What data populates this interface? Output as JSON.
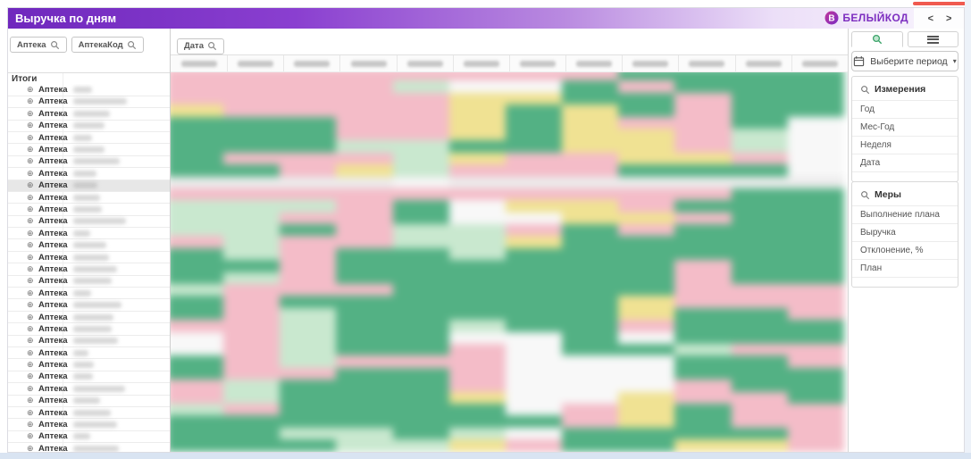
{
  "window": {
    "title": "Выручка по дням",
    "brand": "БЕЛЫЙКОД",
    "colors": {
      "header_purple": "#6f28bd",
      "brand_purple": "#7d2ec0",
      "top_red_bar": "#f05a4f"
    }
  },
  "icons": {
    "expand": "⊕",
    "caret": "▾",
    "nav_prev": "<",
    "nav_next": ">"
  },
  "left_panel": {
    "filters": [
      {
        "label": "Аптека"
      },
      {
        "label": "АптекаКод"
      }
    ],
    "totals_label": "Итоги",
    "row_label": "Аптека",
    "row_count": 31,
    "selected_row_index": 8,
    "names_blurred": true
  },
  "grid": {
    "filter_label": "Дата",
    "column_count": 12,
    "row_count": 32,
    "headers_blurred": true,
    "cells_blurred": true,
    "cell_palette": {
      "green": "#53b184",
      "light_green": "#c9e8cf",
      "pink": "#f4bcc8",
      "yellow": "#f0e293",
      "white": "#f8f8f8",
      "selected_row": "#ececec"
    }
  },
  "right_panel": {
    "tabs": [
      {
        "name": "search"
      },
      {
        "name": "menu"
      }
    ],
    "period_button": {
      "label": "Выберите период"
    },
    "dimensions": {
      "title": "Измерения",
      "items": [
        "Год",
        "Мес-Год",
        "Неделя",
        "Дата"
      ]
    },
    "measures": {
      "title": "Меры",
      "items": [
        "Выполнение плана",
        "Выручка",
        "Отклонение, %",
        "План"
      ]
    }
  }
}
